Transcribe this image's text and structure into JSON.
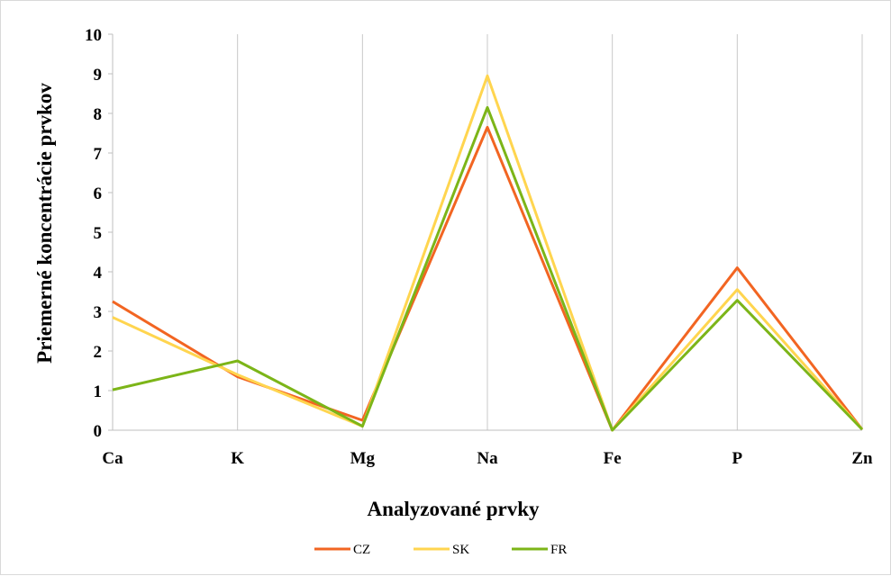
{
  "chart_data": {
    "type": "line",
    "categories": [
      "Ca",
      "K",
      "Mg",
      "Na",
      "Fe",
      "P",
      "Zn"
    ],
    "xlabel": "Analyzované prvky",
    "ylabel": "Priemerné koncentrácie prvkov",
    "ylim": [
      0,
      10
    ],
    "yticks": [
      "0",
      "1",
      "2",
      "3",
      "4",
      "5",
      "6",
      "7",
      "8",
      "9",
      "10"
    ],
    "grid": "vertical",
    "legend_position": "bottom",
    "series": [
      {
        "name": "CZ",
        "color": "#F26522",
        "values": [
          3.25,
          1.35,
          0.25,
          7.65,
          0.0,
          4.1,
          0.02
        ]
      },
      {
        "name": "SK",
        "color": "#FFD54F",
        "values": [
          2.85,
          1.4,
          0.1,
          8.95,
          0.0,
          3.55,
          0.02
        ]
      },
      {
        "name": "FR",
        "color": "#7CB518",
        "values": [
          1.02,
          1.75,
          0.1,
          8.15,
          0.0,
          3.28,
          0.02
        ]
      }
    ]
  }
}
